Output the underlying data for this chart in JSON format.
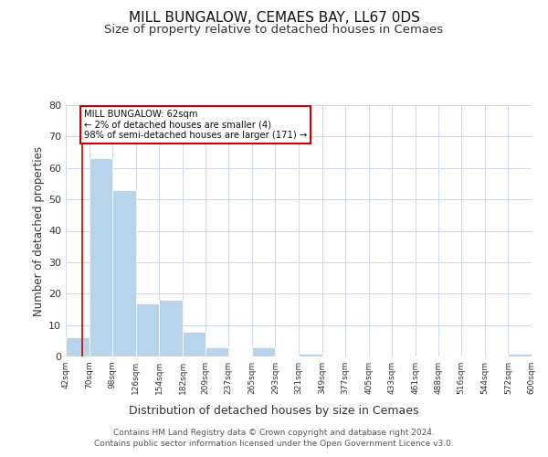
{
  "title": "MILL BUNGALOW, CEMAES BAY, LL67 0DS",
  "subtitle": "Size of property relative to detached houses in Cemaes",
  "xlabel": "Distribution of detached houses by size in Cemaes",
  "ylabel": "Number of detached properties",
  "bar_color": "#b8d4ea",
  "annotation_box_text": "MILL BUNGALOW: 62sqm\n← 2% of detached houses are smaller (4)\n98% of semi-detached houses are larger (171) →",
  "annotation_box_edge_color": "#cc0000",
  "property_line_color": "#cc0000",
  "property_value": 62,
  "bin_edges": [
    42,
    70,
    98,
    126,
    154,
    182,
    209,
    237,
    265,
    293,
    321,
    349,
    377,
    405,
    433,
    461,
    488,
    516,
    544,
    572,
    600
  ],
  "bin_counts": [
    6,
    63,
    53,
    17,
    18,
    8,
    3,
    0,
    3,
    0,
    1,
    0,
    0,
    0,
    0,
    0,
    0,
    0,
    0,
    1
  ],
  "ylim": [
    0,
    80
  ],
  "yticks": [
    0,
    10,
    20,
    30,
    40,
    50,
    60,
    70,
    80
  ],
  "tick_labels": [
    "42sqm",
    "70sqm",
    "98sqm",
    "126sqm",
    "154sqm",
    "182sqm",
    "209sqm",
    "237sqm",
    "265sqm",
    "293sqm",
    "321sqm",
    "349sqm",
    "377sqm",
    "405sqm",
    "433sqm",
    "461sqm",
    "488sqm",
    "516sqm",
    "544sqm",
    "572sqm",
    "600sqm"
  ],
  "footer_line1": "Contains HM Land Registry data © Crown copyright and database right 2024.",
  "footer_line2": "Contains public sector information licensed under the Open Government Licence v3.0.",
  "background_color": "#ffffff",
  "grid_color": "#ccd8e8",
  "title_fontsize": 11,
  "subtitle_fontsize": 9.5,
  "xlabel_fontsize": 9,
  "ylabel_fontsize": 8.5,
  "footer_fontsize": 6.5,
  "tick_fontsize": 6.5
}
